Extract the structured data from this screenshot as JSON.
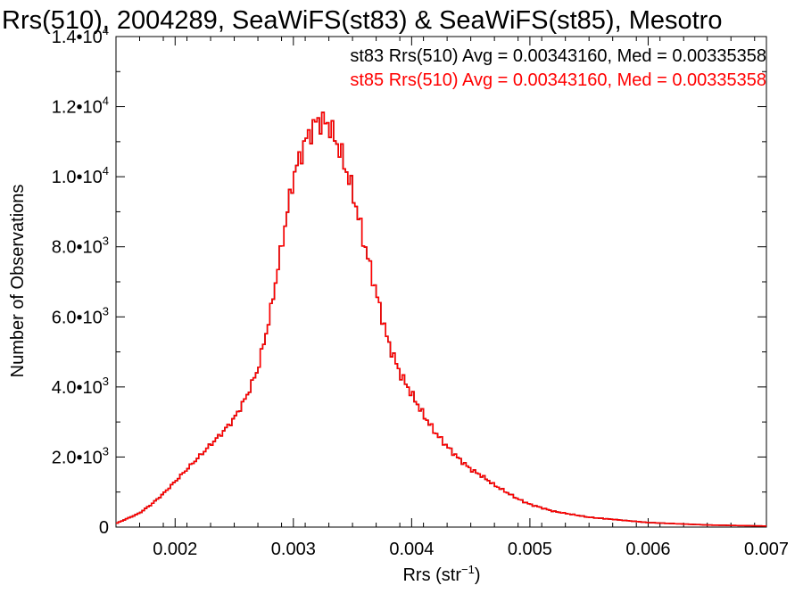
{
  "chart_data": {
    "type": "histogram-step",
    "title": "Rrs(510), 2004289, SeaWiFS(st83) & SeaWiFS(st85), Mesotro",
    "xlabel_base": "Rrs (str",
    "xlabel_exp": "−1",
    "xlabel_tail": ")",
    "ylabel": "Number of Observations",
    "xlim": [
      0.0015,
      0.007
    ],
    "ylim": [
      0,
      14000
    ],
    "x_ticks": [
      0.002,
      0.003,
      0.004,
      0.005,
      0.006,
      0.007
    ],
    "x_tick_labels": [
      "0.002",
      "0.003",
      "0.004",
      "0.005",
      "0.006",
      "0.007"
    ],
    "y_ticks": [
      0,
      2000,
      4000,
      6000,
      8000,
      10000,
      12000,
      14000
    ],
    "y_tick_labels": [
      {
        "value": 0,
        "mantissa": "0",
        "exp": ""
      },
      {
        "value": 2000,
        "mantissa": "2.0•10",
        "exp": "3"
      },
      {
        "value": 4000,
        "mantissa": "4.0•10",
        "exp": "3"
      },
      {
        "value": 6000,
        "mantissa": "6.0•10",
        "exp": "3"
      },
      {
        "value": 8000,
        "mantissa": "8.0•10",
        "exp": "3"
      },
      {
        "value": 10000,
        "mantissa": "1.0•10",
        "exp": "4"
      },
      {
        "value": 12000,
        "mantissa": "1.2•10",
        "exp": "4"
      },
      {
        "value": 14000,
        "mantissa": "1.4•10",
        "exp": "4"
      }
    ],
    "annotations": [
      {
        "text": "st83 Rrs(510) Avg = 0.00343160, Med = 0.00335358",
        "color": "#000000"
      },
      {
        "text": "st85 Rrs(510) Avg = 0.00343160, Med = 0.00335358",
        "color": "#ff0000"
      }
    ],
    "grid": false,
    "bin_width": 2e-05,
    "series": [
      {
        "name": "st83",
        "color": "#000000",
        "x": [
          0.0015,
          0.0016,
          0.0017,
          0.0018,
          0.0019,
          0.002,
          0.0021,
          0.0022,
          0.0023,
          0.0024,
          0.0025,
          0.0026,
          0.0027,
          0.0028,
          0.0029,
          0.003,
          0.0031,
          0.0032,
          0.0033,
          0.0034,
          0.0035,
          0.0036,
          0.0037,
          0.0038,
          0.0039,
          0.004,
          0.0041,
          0.0042,
          0.0043,
          0.0044,
          0.0045,
          0.0046,
          0.0047,
          0.0048,
          0.0049,
          0.005,
          0.0052,
          0.0055,
          0.006,
          0.0065,
          0.007
        ],
        "values": [
          100,
          250,
          400,
          650,
          950,
          1300,
          1650,
          2000,
          2350,
          2700,
          3100,
          3700,
          4500,
          6000,
          8000,
          10000,
          11000,
          11600,
          11500,
          10700,
          9600,
          8100,
          6700,
          5300,
          4400,
          3800,
          3200,
          2700,
          2300,
          1950,
          1650,
          1450,
          1200,
          1000,
          800,
          650,
          450,
          280,
          130,
          60,
          30
        ]
      },
      {
        "name": "st85",
        "color": "#ff0000",
        "x": [
          0.0015,
          0.0016,
          0.0017,
          0.0018,
          0.0019,
          0.002,
          0.0021,
          0.0022,
          0.0023,
          0.0024,
          0.0025,
          0.0026,
          0.0027,
          0.0028,
          0.0029,
          0.003,
          0.0031,
          0.0032,
          0.0033,
          0.0034,
          0.0035,
          0.0036,
          0.0037,
          0.0038,
          0.0039,
          0.004,
          0.0041,
          0.0042,
          0.0043,
          0.0044,
          0.0045,
          0.0046,
          0.0047,
          0.0048,
          0.0049,
          0.005,
          0.0052,
          0.0055,
          0.006,
          0.0065,
          0.007
        ],
        "values": [
          100,
          250,
          400,
          650,
          950,
          1300,
          1650,
          2000,
          2350,
          2700,
          3100,
          3700,
          4500,
          6000,
          8000,
          10000,
          11000,
          11600,
          11500,
          10700,
          9600,
          8100,
          6700,
          5300,
          4400,
          3800,
          3200,
          2700,
          2300,
          1950,
          1650,
          1450,
          1200,
          1000,
          800,
          650,
          450,
          280,
          130,
          60,
          30
        ]
      }
    ]
  }
}
